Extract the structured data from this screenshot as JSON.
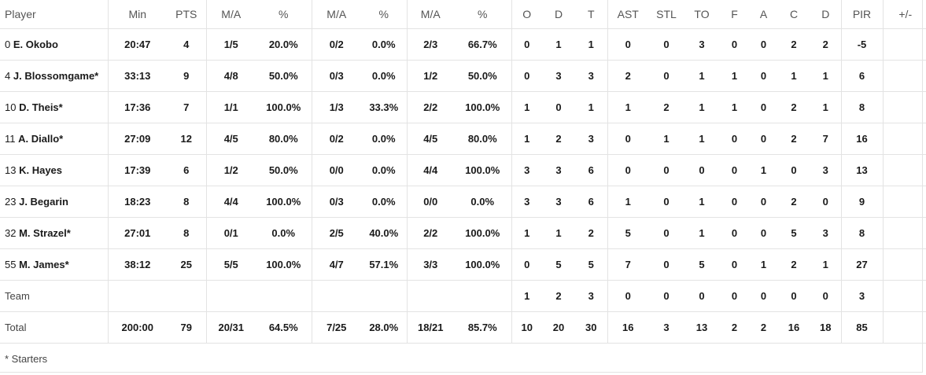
{
  "columns": [
    "Player",
    "Min",
    "PTS",
    "M/A",
    "%",
    "M/A",
    "%",
    "M/A",
    "%",
    "O",
    "D",
    "T",
    "AST",
    "STL",
    "TO",
    "F",
    "A",
    "C",
    "D",
    "PIR",
    "+/-"
  ],
  "players": [
    {
      "num": "0",
      "name": "E. Okobo",
      "min": "20:47",
      "pts": "4",
      "fg2": "1/5",
      "fg2p": "20.0%",
      "fg3": "0/2",
      "fg3p": "0.0%",
      "ft": "2/3",
      "ftp": "66.7%",
      "o": "0",
      "d": "1",
      "t": "1",
      "ast": "0",
      "stl": "0",
      "to": "3",
      "f": "0",
      "a": "0",
      "c": "2",
      "dd": "2",
      "pir": "-5",
      "pm": ""
    },
    {
      "num": "4",
      "name": "J. Blossomgame*",
      "min": "33:13",
      "pts": "9",
      "fg2": "4/8",
      "fg2p": "50.0%",
      "fg3": "0/3",
      "fg3p": "0.0%",
      "ft": "1/2",
      "ftp": "50.0%",
      "o": "0",
      "d": "3",
      "t": "3",
      "ast": "2",
      "stl": "0",
      "to": "1",
      "f": "1",
      "a": "0",
      "c": "1",
      "dd": "1",
      "pir": "6",
      "pm": ""
    },
    {
      "num": "10",
      "name": "D. Theis*",
      "min": "17:36",
      "pts": "7",
      "fg2": "1/1",
      "fg2p": "100.0%",
      "fg3": "1/3",
      "fg3p": "33.3%",
      "ft": "2/2",
      "ftp": "100.0%",
      "o": "1",
      "d": "0",
      "t": "1",
      "ast": "1",
      "stl": "2",
      "to": "1",
      "f": "1",
      "a": "0",
      "c": "2",
      "dd": "1",
      "pir": "8",
      "pm": ""
    },
    {
      "num": "11",
      "name": "A. Diallo*",
      "min": "27:09",
      "pts": "12",
      "fg2": "4/5",
      "fg2p": "80.0%",
      "fg3": "0/2",
      "fg3p": "0.0%",
      "ft": "4/5",
      "ftp": "80.0%",
      "o": "1",
      "d": "2",
      "t": "3",
      "ast": "0",
      "stl": "1",
      "to": "1",
      "f": "0",
      "a": "0",
      "c": "2",
      "dd": "7",
      "pir": "16",
      "pm": ""
    },
    {
      "num": "13",
      "name": "K. Hayes",
      "min": "17:39",
      "pts": "6",
      "fg2": "1/2",
      "fg2p": "50.0%",
      "fg3": "0/0",
      "fg3p": "0.0%",
      "ft": "4/4",
      "ftp": "100.0%",
      "o": "3",
      "d": "3",
      "t": "6",
      "ast": "0",
      "stl": "0",
      "to": "0",
      "f": "0",
      "a": "1",
      "c": "0",
      "dd": "3",
      "pir": "13",
      "pm": ""
    },
    {
      "num": "23",
      "name": "J. Begarin",
      "min": "18:23",
      "pts": "8",
      "fg2": "4/4",
      "fg2p": "100.0%",
      "fg3": "0/3",
      "fg3p": "0.0%",
      "ft": "0/0",
      "ftp": "0.0%",
      "o": "3",
      "d": "3",
      "t": "6",
      "ast": "1",
      "stl": "0",
      "to": "1",
      "f": "0",
      "a": "0",
      "c": "2",
      "dd": "0",
      "pir": "9",
      "pm": ""
    },
    {
      "num": "32",
      "name": "M. Strazel*",
      "min": "27:01",
      "pts": "8",
      "fg2": "0/1",
      "fg2p": "0.0%",
      "fg3": "2/5",
      "fg3p": "40.0%",
      "ft": "2/2",
      "ftp": "100.0%",
      "o": "1",
      "d": "1",
      "t": "2",
      "ast": "5",
      "stl": "0",
      "to": "1",
      "f": "0",
      "a": "0",
      "c": "5",
      "dd": "3",
      "pir": "8",
      "pm": ""
    },
    {
      "num": "55",
      "name": "M. James*",
      "min": "38:12",
      "pts": "25",
      "fg2": "5/5",
      "fg2p": "100.0%",
      "fg3": "4/7",
      "fg3p": "57.1%",
      "ft": "3/3",
      "ftp": "100.0%",
      "o": "0",
      "d": "5",
      "t": "5",
      "ast": "7",
      "stl": "0",
      "to": "5",
      "f": "0",
      "a": "1",
      "c": "2",
      "dd": "1",
      "pir": "27",
      "pm": ""
    }
  ],
  "team": {
    "label": "Team",
    "o": "1",
    "d": "2",
    "t": "3",
    "ast": "0",
    "stl": "0",
    "to": "0",
    "f": "0",
    "a": "0",
    "c": "0",
    "dd": "0",
    "pir": "3"
  },
  "total": {
    "label": "Total",
    "min": "200:00",
    "pts": "79",
    "fg2": "20/31",
    "fg2p": "64.5%",
    "fg3": "7/25",
    "fg3p": "28.0%",
    "ft": "18/21",
    "ftp": "85.7%",
    "o": "10",
    "d": "20",
    "t": "30",
    "ast": "16",
    "stl": "3",
    "to": "13",
    "f": "2",
    "a": "2",
    "c": "16",
    "dd": "18",
    "pir": "85",
    "pm": ""
  },
  "footer": "* Starters"
}
